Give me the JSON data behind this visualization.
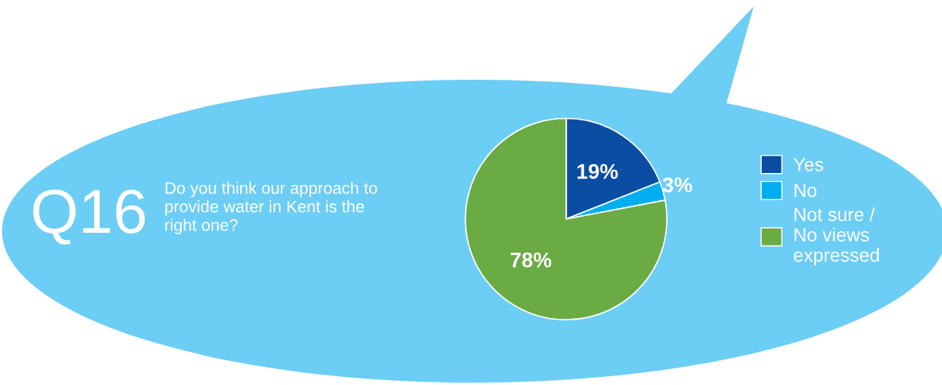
{
  "chart_data": {
    "type": "pie",
    "title": "Q16",
    "subtitle": "Do you think our approach to\nprovide water in Kent is the\nright one?",
    "categories": [
      "Yes",
      "No",
      "Not sure /\nNo views\nexpressed"
    ],
    "values": [
      19,
      3,
      78
    ],
    "colors": [
      "#0b4da2",
      "#00aeef",
      "#6aab44"
    ],
    "value_labels": [
      "19%",
      "3%",
      "78%"
    ],
    "legend": "right"
  }
}
